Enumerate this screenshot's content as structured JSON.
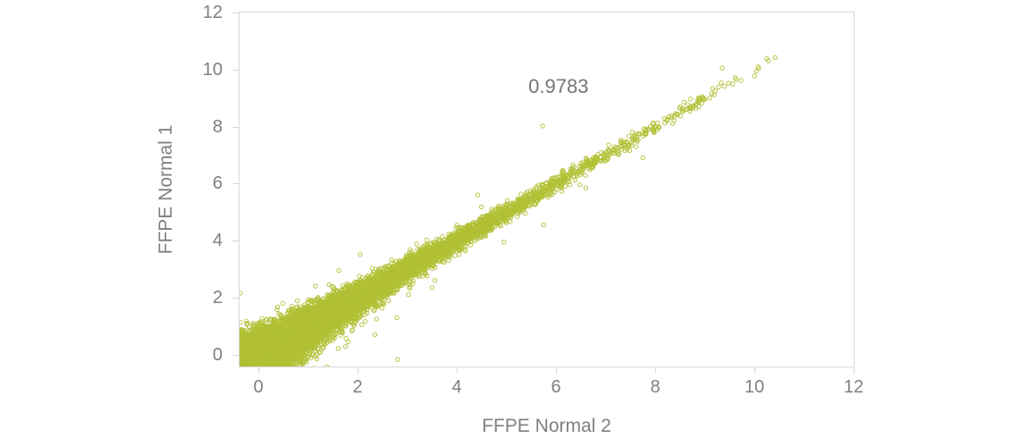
{
  "chart_data": {
    "type": "scatter",
    "title": "",
    "xlabel": "FFPE Normal 2",
    "ylabel": "FFPE Normal 1",
    "annotation": {
      "text": "0.9783",
      "x": 6.05,
      "y": 9.4
    },
    "xlim": [
      -0.38,
      12
    ],
    "ylim": [
      -0.42,
      12
    ],
    "xticks": [
      0,
      2,
      4,
      6,
      8,
      10,
      12
    ],
    "yticks": [
      0,
      2,
      4,
      6,
      8,
      10,
      12
    ],
    "grid": false,
    "legend": "none",
    "marker": {
      "shape": "open-circle",
      "radius_px": 2.2,
      "stroke_px": 1,
      "color": "#b1c034",
      "opacity": 0.9
    },
    "colors": {
      "points": "#b1c034",
      "axis_box": "#d9d9d9",
      "tick": "#d9d9d9",
      "label": "#7f7f7f",
      "annotation": "#767676",
      "background": "#ffffff"
    },
    "points": {
      "description": "Dense y=x correlation cloud of log2 expression values; very dense near 0-3, narrowing band up to ~10.3, clipped at axis minimum",
      "n": 13000,
      "seed": 7,
      "value_min": -0.5,
      "exp_mean": 1.8,
      "value_max": 10.4,
      "noise_base": 0.28,
      "noise_decay": 3.0,
      "noise_floor": 0.06,
      "outlier_every": 150,
      "outlier_noise_mult": 2.8,
      "outliers": [
        [
          5.73,
          8.02
        ],
        [
          5.75,
          4.55
        ],
        [
          7.75,
          6.9
        ],
        [
          2.05,
          3.52
        ],
        [
          6.6,
          5.85
        ],
        [
          4.42,
          5.6
        ],
        [
          1.62,
          2.95
        ],
        [
          2.35,
          0.7
        ],
        [
          4.95,
          3.95
        ],
        [
          3.5,
          2.35
        ],
        [
          9.35,
          10.05
        ],
        [
          1.15,
          2.4
        ]
      ]
    }
  }
}
